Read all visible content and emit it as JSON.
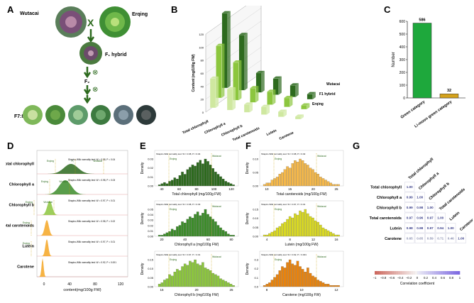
{
  "colors": {
    "dark_green": "#2d6a1e",
    "green": "#3c8c2a",
    "light_green": "#8cc63e",
    "pale_green": "#cfe8a0",
    "orange": "#f5a623",
    "yellow": "#d9d923",
    "bright_green": "#1ea83c",
    "gold": "#d4a21c"
  },
  "panel_labels": [
    "A",
    "B",
    "C",
    "D",
    "E",
    "F",
    "G"
  ],
  "panel_a": {
    "parent1": "Wutacai",
    "parent2": "Erqing",
    "cross_symbol": "X",
    "hybrid": "F₁ hybrid",
    "f2": "F₂",
    "f7": "F7:8",
    "selfing_symbol": "⊗"
  },
  "chart_data": [
    {
      "id": "B",
      "type": "bar",
      "title": "",
      "ylabel": "Content (mg/100g FW)",
      "ylim": [
        0,
        120
      ],
      "yticks": [
        "0",
        "20",
        "40",
        "60",
        "80",
        "100",
        "120"
      ],
      "categories": [
        "Total chlorophyll",
        "Chlorophyll a",
        "Chlorophyll b",
        "Total carotenoids",
        "Lutein",
        "Carotene"
      ],
      "series": [
        {
          "name": "Wutacai",
          "values": [
            115,
            85,
            30,
            25,
            18,
            8
          ]
        },
        {
          "name": "F1 hybrid",
          "values": [
            80,
            58,
            22,
            20,
            14,
            6
          ]
        },
        {
          "name": "Erqing",
          "values": [
            45,
            32,
            12,
            12,
            8,
            4
          ]
        }
      ]
    },
    {
      "id": "C",
      "type": "bar",
      "ylabel": "Number",
      "ylim": [
        0,
        600
      ],
      "yticks": [
        "0",
        "100",
        "200",
        "300",
        "400",
        "500",
        "600"
      ],
      "categories": [
        "Green category",
        "Li-moon green category"
      ],
      "values": [
        586,
        32
      ],
      "value_labels": [
        "586",
        "32"
      ]
    },
    {
      "id": "D",
      "type": "area",
      "xlabel": "content(mg/100g FW)",
      "xticks": [
        "0",
        "40",
        "80",
        "120"
      ],
      "rows": [
        {
          "name": "Total chlorophyll",
          "stat": "Shapiro-Wilk normality test: W = 0.98, P = 0.04",
          "markers": [
            "Erqing",
            "F₁",
            "Wutacai"
          ]
        },
        {
          "name": "Chlorophyll a",
          "stat": "Shapiro-Wilk normality test: W = 0.98, P = 0.03",
          "markers": [
            "Erqing",
            "Wutacai"
          ]
        },
        {
          "name": "Chlorophyll b",
          "stat": "Shapiro-Wilk normality test: W = 0.97, P < 0.01",
          "markers": [
            "Erqing",
            "Wutacai"
          ]
        },
        {
          "name": "Total carotenoids",
          "stat": "Shapiro-Wilk normality test: W = 0.98, P = 0.02",
          "markers": [
            "Erqing"
          ]
        },
        {
          "name": "Lutein",
          "stat": "Shapiro-Wilk normality test: W = 0.97, P = 0.01",
          "markers": [
            "Erqing"
          ]
        },
        {
          "name": "Carotene",
          "stat": "Shapiro-Wilk normality test: W = 0.92, P < 0.001",
          "markers": []
        }
      ]
    },
    {
      "id": "E",
      "type": "bar",
      "subplots": [
        {
          "xlabel": "Total chlorophyll (mg/100g FW)",
          "ylabel": "Density",
          "xticks": [
            "40",
            "60",
            "80",
            "100",
            "120"
          ],
          "yticks": [
            "0.00",
            "0.01",
            "0.02",
            "0.03"
          ],
          "stat": "Shapiro-Wilk normality test: W = 0.98, P = 0.04",
          "values": [
            1,
            2,
            3,
            2,
            4,
            5,
            7,
            6,
            9,
            12,
            10,
            14,
            16,
            18,
            17,
            20,
            22,
            19,
            23,
            21,
            18,
            15,
            12,
            10,
            8,
            6,
            4,
            3,
            2,
            1
          ],
          "markers": [
            "Wutacai",
            "Erqing"
          ]
        },
        {
          "xlabel": "Chlorophyll a (mg/100g FW)",
          "ylabel": "Density",
          "xticks": [
            "20",
            "40",
            "60",
            "80"
          ],
          "yticks": [
            "0.00",
            "0.01",
            "0.02",
            "0.03",
            "0.04",
            "0.05"
          ],
          "stat": "Shapiro-Wilk normality test: W = 0.98, P = 0.03",
          "values": [
            1,
            1,
            2,
            3,
            4,
            6,
            5,
            8,
            9,
            12,
            11,
            14,
            16,
            15,
            18,
            20,
            17,
            19,
            22,
            18,
            16,
            14,
            12,
            9,
            7,
            5,
            4,
            2,
            1,
            1
          ],
          "markers": [
            "Wutacai",
            "Erqing"
          ]
        },
        {
          "xlabel": "Chlorophyll b (mg/100g FW)",
          "ylabel": "Density",
          "xticks": [
            "15",
            "20",
            "25"
          ],
          "yticks": [
            "0.00",
            "0.05",
            "0.10",
            "0.15"
          ],
          "stat": "Shapiro-Wilk normality test: W = 0.97, P < 0.01",
          "values": [
            2,
            3,
            5,
            6,
            9,
            8,
            11,
            13,
            12,
            15,
            17,
            16,
            19,
            18,
            20,
            17,
            16,
            18,
            14,
            13,
            12,
            10,
            9,
            8,
            6,
            5,
            4,
            3,
            2,
            1
          ],
          "markers": [
            "Wutacai",
            "Erqing"
          ]
        }
      ]
    },
    {
      "id": "F",
      "type": "bar",
      "subplots": [
        {
          "xlabel": "Total carotenoids (mg/100g FW)",
          "ylabel": "Density",
          "xticks": [
            "10",
            "15",
            "20",
            "25"
          ],
          "yticks": [
            "0.00",
            "0.05",
            "0.10"
          ],
          "stat": "Shapiro-Wilk normality test: W = 0.98, P = 0.02",
          "values": [
            1,
            2,
            2,
            4,
            5,
            6,
            8,
            9,
            11,
            13,
            12,
            15,
            17,
            16,
            18,
            17,
            15,
            14,
            12,
            11,
            9,
            8,
            6,
            5,
            4,
            3,
            2,
            1,
            1,
            1
          ],
          "markers": [
            "Wutacai",
            "Erqing"
          ]
        },
        {
          "xlabel": "Lutein (mg/100g FW)",
          "ylabel": "Density",
          "xticks": [
            "4",
            "8",
            "12",
            "16"
          ],
          "yticks": [
            "0.00",
            "0.05",
            "0.10",
            "0.15"
          ],
          "stat": "Shapiro-Wilk normality test: W = 0.97, P = 0.01",
          "values": [
            1,
            1,
            2,
            3,
            4,
            6,
            7,
            9,
            10,
            12,
            14,
            13,
            16,
            15,
            18,
            17,
            19,
            16,
            14,
            13,
            11,
            10,
            8,
            6,
            5,
            4,
            3,
            2,
            1,
            1
          ],
          "markers": [
            "Wutacai",
            "Erqing"
          ]
        },
        {
          "xlabel": "Carotene (mg/100g FW)",
          "ylabel": "Density",
          "xticks": [
            "8",
            "10",
            "12"
          ],
          "yticks": [
            "0.0",
            "0.1",
            "0.2",
            "0.3"
          ],
          "stat": "Shapiro-Wilk normality test: W = 0.92, P < 0.001",
          "values": [
            1,
            2,
            3,
            5,
            7,
            9,
            12,
            15,
            14,
            18,
            20,
            17,
            16,
            19,
            15,
            13,
            11,
            14,
            10,
            8,
            7,
            5,
            4,
            3,
            2,
            2,
            1,
            1,
            1,
            1
          ],
          "markers": [
            "Wutacai",
            "Erqing"
          ]
        }
      ]
    },
    {
      "id": "G",
      "type": "heatmap",
      "xlabel": "Correlation coefficient",
      "labels": [
        "Total chlorophyll",
        "Chlorophyll a",
        "Chlorophyll b",
        "Total carotenoids",
        "Lutein",
        "Carotene"
      ],
      "matrix": [
        [
          1.0
        ],
        [
          0.99,
          1.0
        ],
        [
          0.99,
          0.98,
          1.0
        ],
        [
          0.97,
          0.96,
          0.97,
          1.0
        ],
        [
          0.98,
          0.98,
          0.97,
          0.94,
          1.0
        ],
        [
          0.65,
          0.65,
          0.59,
          0.71,
          0.46,
          1.0
        ]
      ],
      "colorbar_ticks": [
        "−1",
        "−0.8",
        "−0.6",
        "−0.4",
        "−0.2",
        "0",
        "0.2",
        "0.4",
        "0.6",
        "0.8",
        "1"
      ]
    }
  ]
}
